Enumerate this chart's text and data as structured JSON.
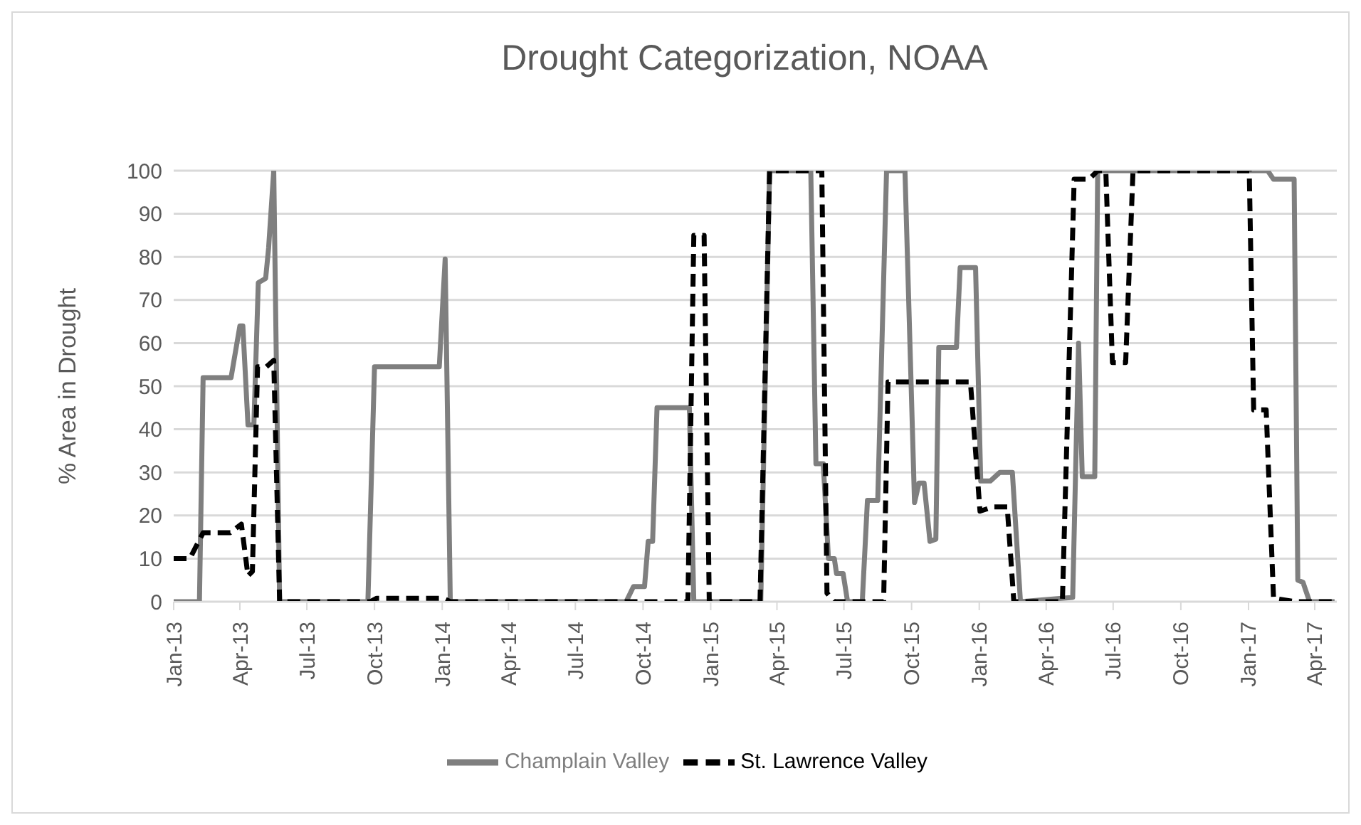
{
  "chart_data": {
    "type": "line",
    "title": "Drought Categorization, NOAA",
    "ylabel": "% Area in Drought",
    "xlim": [
      "2013-01-01",
      "2017-05-01"
    ],
    "ylim": [
      0,
      100
    ],
    "yticks": [
      0,
      10,
      20,
      30,
      40,
      50,
      60,
      70,
      80,
      90,
      100
    ],
    "xticks": [
      {
        "value": "2013-01-01",
        "label": "Jan-13"
      },
      {
        "value": "2013-04-01",
        "label": "Apr-13"
      },
      {
        "value": "2013-07-01",
        "label": "Jul-13"
      },
      {
        "value": "2013-10-01",
        "label": "Oct-13"
      },
      {
        "value": "2014-01-01",
        "label": "Jan-14"
      },
      {
        "value": "2014-04-01",
        "label": "Apr-14"
      },
      {
        "value": "2014-07-01",
        "label": "Jul-14"
      },
      {
        "value": "2014-10-01",
        "label": "Oct-14"
      },
      {
        "value": "2015-01-01",
        "label": "Jan-15"
      },
      {
        "value": "2015-04-01",
        "label": "Apr-15"
      },
      {
        "value": "2015-07-01",
        "label": "Jul-15"
      },
      {
        "value": "2015-10-01",
        "label": "Oct-15"
      },
      {
        "value": "2016-01-01",
        "label": "Jan-16"
      },
      {
        "value": "2016-04-01",
        "label": "Apr-16"
      },
      {
        "value": "2016-07-01",
        "label": "Jul-16"
      },
      {
        "value": "2016-10-01",
        "label": "Oct-16"
      },
      {
        "value": "2017-01-01",
        "label": "Jan-17"
      },
      {
        "value": "2017-04-01",
        "label": "Apr-17"
      }
    ],
    "grid": "y",
    "legend": "bottom",
    "series": [
      {
        "name": "Champlain Valley",
        "color": "#7f7f7f",
        "line_style": "solid",
        "x": [
          "2013-01-01",
          "2013-02-05",
          "2013-02-10",
          "2013-03-20",
          "2013-04-01",
          "2013-04-05",
          "2013-04-12",
          "2013-04-20",
          "2013-04-26",
          "2013-05-06",
          "2013-05-10",
          "2013-05-17",
          "2013-05-25",
          "2013-09-22",
          "2013-10-01",
          "2013-12-28",
          "2014-01-05",
          "2014-01-12",
          "2014-09-08",
          "2014-09-18",
          "2014-10-03",
          "2014-10-08",
          "2014-10-14",
          "2014-10-20",
          "2014-12-03",
          "2014-12-09",
          "2015-03-10",
          "2015-03-22",
          "2015-05-17",
          "2015-05-24",
          "2015-06-03",
          "2015-06-10",
          "2015-06-18",
          "2015-06-21",
          "2015-06-30",
          "2015-07-06",
          "2015-07-26",
          "2015-08-02",
          "2015-08-16",
          "2015-08-28",
          "2015-09-22",
          "2015-10-05",
          "2015-10-11",
          "2015-10-18",
          "2015-10-26",
          "2015-11-03",
          "2015-11-07",
          "2015-12-01",
          "2015-12-06",
          "2015-12-27",
          "2016-01-03",
          "2016-01-16",
          "2016-01-29",
          "2016-02-15",
          "2016-02-26",
          "2016-05-07",
          "2016-05-15",
          "2016-05-20",
          "2016-06-06",
          "2016-06-10",
          "2017-01-27",
          "2017-02-04",
          "2017-03-04",
          "2017-03-09",
          "2017-03-16",
          "2017-03-25",
          "2017-04-28"
        ],
        "values": [
          0,
          0,
          52,
          52,
          64,
          64,
          41,
          41,
          74,
          75,
          82,
          100,
          0,
          0,
          54.5,
          54.5,
          79.5,
          0,
          0,
          3.5,
          3.5,
          14,
          14,
          45,
          45,
          0,
          0,
          100,
          100,
          32,
          32,
          10,
          10,
          6.5,
          6.5,
          0,
          0,
          23.5,
          23.5,
          100,
          100,
          23,
          27.5,
          27.5,
          14,
          14.5,
          59,
          59,
          77.5,
          77.5,
          28,
          28,
          30,
          30,
          0,
          1,
          60,
          29,
          29,
          100,
          100,
          98,
          98,
          5,
          4.5,
          0,
          0
        ]
      },
      {
        "name": "St. Lawrence Valley",
        "color": "#000000",
        "line_style": "dashed",
        "x": [
          "2013-01-01",
          "2013-01-23",
          "2013-02-10",
          "2013-03-19",
          "2013-04-03",
          "2013-04-12",
          "2013-04-18",
          "2013-04-25",
          "2013-05-07",
          "2013-05-17",
          "2013-05-25",
          "2013-09-25",
          "2013-10-04",
          "2014-01-02",
          "2014-01-12",
          "2014-12-01",
          "2014-12-09",
          "2014-12-23",
          "2014-12-30",
          "2015-03-09",
          "2015-03-22",
          "2015-06-01",
          "2015-06-08",
          "2015-06-18",
          "2015-08-24",
          "2015-08-30",
          "2015-12-20",
          "2016-01-02",
          "2016-01-20",
          "2016-02-08",
          "2016-02-17",
          "2016-04-23",
          "2016-04-30",
          "2016-05-09",
          "2016-05-29",
          "2016-06-10",
          "2016-06-21",
          "2016-06-30",
          "2016-07-18",
          "2016-07-28",
          "2017-01-02",
          "2017-01-08",
          "2017-01-25",
          "2017-02-04",
          "2017-03-06",
          "2017-04-28"
        ],
        "values": [
          10,
          10,
          16,
          16,
          18,
          6,
          7,
          54.5,
          54.5,
          56,
          0,
          0,
          0.8,
          0.8,
          0,
          0,
          85,
          85,
          0,
          0,
          100,
          100,
          2,
          0,
          0,
          51,
          51,
          21,
          22,
          22,
          0,
          0,
          43,
          98,
          98,
          100,
          100,
          55.5,
          55.5,
          100,
          100,
          44.5,
          44.5,
          0.8,
          0,
          0
        ]
      }
    ]
  }
}
